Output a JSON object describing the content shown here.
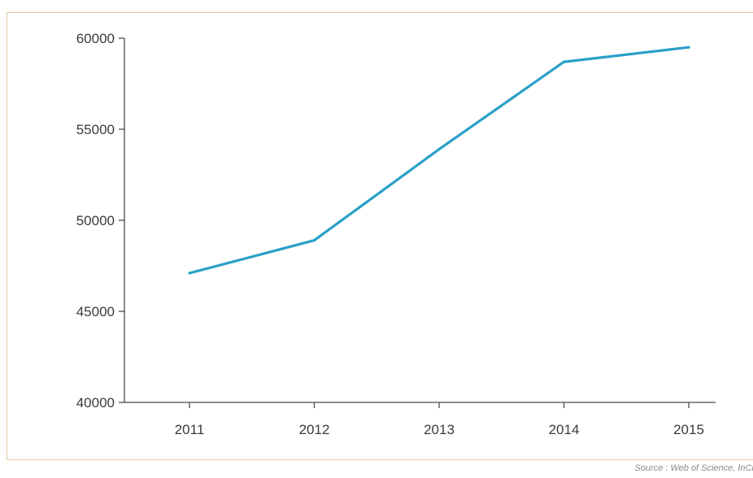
{
  "chart_data": {
    "type": "line",
    "x": [
      "2011",
      "2012",
      "2013",
      "2014",
      "2015"
    ],
    "series": [
      {
        "values": [
          47100,
          48900,
          53900,
          58700,
          59500
        ]
      }
    ],
    "ylim": [
      40000,
      60000
    ],
    "yticks": [
      "40000",
      "45000",
      "50000",
      "55000",
      "60000"
    ],
    "ytick_values": [
      40000,
      45000,
      50000,
      55000,
      60000
    ],
    "grid": false,
    "legend": "none",
    "title": "",
    "xlabel": "",
    "ylabel": ""
  },
  "colors": {
    "line": "#2aa0c8",
    "frame": "#e2c9a8",
    "axis": "#4a4a4a"
  },
  "source_note": "Source : Web of Science, InCit"
}
